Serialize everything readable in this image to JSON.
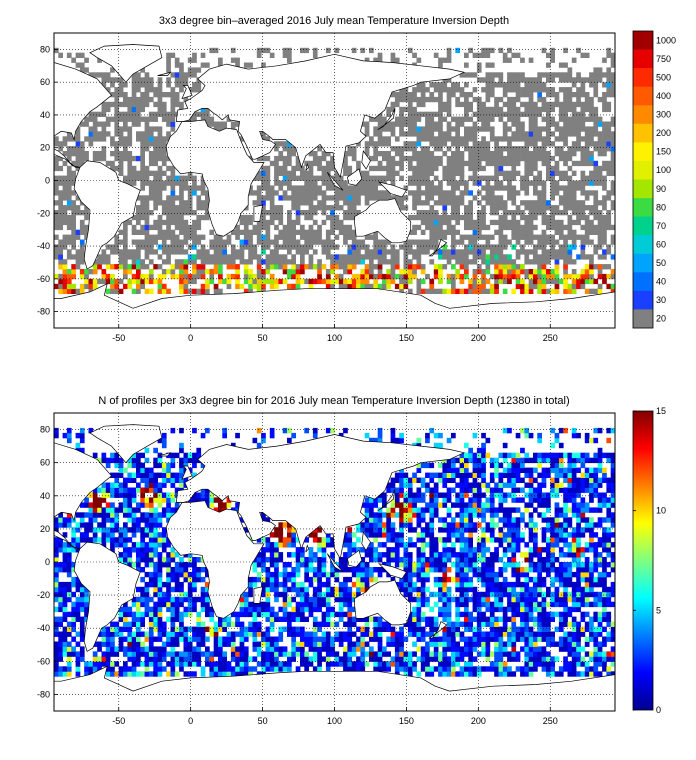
{
  "panels": [
    {
      "id": "depth",
      "title": "3x3 degree bin–averaged 2016 July mean Temperature Inversion Depth",
      "xticks": [
        -50,
        0,
        50,
        100,
        150,
        200,
        250
      ],
      "yticks": [
        80,
        60,
        40,
        20,
        0,
        -20,
        -40,
        -60,
        -80
      ],
      "colorbar_labels": [
        "1000",
        "750",
        "500",
        "400",
        "300",
        "200",
        "150",
        "100",
        "90",
        "80",
        "70",
        "60",
        "50",
        "40",
        "30",
        "20"
      ]
    },
    {
      "id": "count",
      "title": "N of profiles per 3x3 degree bin for 2016 July mean Temperature Inversion Depth  (12380 in total)",
      "xticks": [
        -50,
        0,
        50,
        100,
        150,
        200,
        250
      ],
      "yticks": [
        80,
        60,
        40,
        20,
        0,
        -20,
        -40,
        -60,
        -80
      ],
      "colorbar_labels": [
        "15",
        "10",
        "5",
        "0"
      ]
    }
  ],
  "chart_data": [
    {
      "type": "heatmap",
      "title": "3x3 degree bin–averaged 2016 July mean Temperature Inversion Depth",
      "xlim": [
        -95,
        295
      ],
      "ylim": [
        -90,
        90
      ],
      "bin_size_deg": 3,
      "grid": true,
      "colorscale": "jet_discrete",
      "colorbar_labels": [
        "20",
        "30",
        "40",
        "50",
        "60",
        "70",
        "80",
        "90",
        "100",
        "150",
        "200",
        "300",
        "400",
        "500",
        "750",
        "1000"
      ],
      "colors": {
        "lowest_bin": "#808080",
        "missing": "#ffffff",
        "coast": "#000000"
      },
      "notes": "Most ocean bins in lowest class (20, grey); values rise to 300–1000 along ~55–65S Southern Ocean band."
    },
    {
      "type": "heatmap",
      "title": "N of profiles per 3x3 degree bin for 2016 July mean Temperature Inversion Depth  (12380 in total)",
      "xlim": [
        -95,
        295
      ],
      "ylim": [
        -90,
        90
      ],
      "bin_size_deg": 3,
      "grid": true,
      "colorscale": "jet",
      "clim": [
        0,
        15
      ],
      "colorbar_labels": [
        "0",
        "5",
        "10",
        "15"
      ],
      "total_profiles": 12380,
      "notes": "Counts mostly 1–5 (blue/cyan); high counts (~15, dark red) in Mediterranean, Arabian Sea and Bay of Bengal."
    }
  ]
}
